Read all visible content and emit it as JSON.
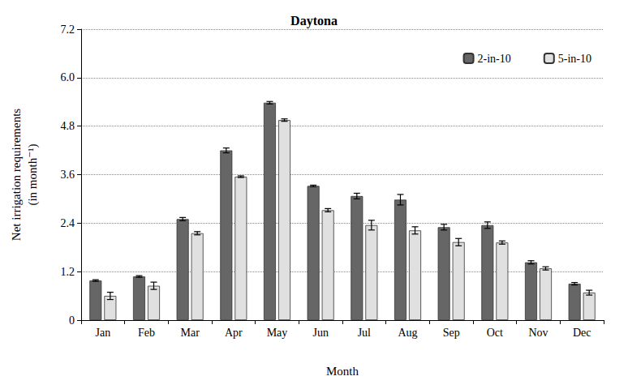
{
  "chart_data": {
    "type": "bar",
    "title": "Daytona",
    "x_label": "Month",
    "y_label": "Net irrigation requirements\n(in month⁻¹)",
    "categories": [
      "Jan",
      "Feb",
      "Mar",
      "Apr",
      "May",
      "Jun",
      "Jul",
      "Aug",
      "Sep",
      "Oct",
      "Nov",
      "Dec"
    ],
    "series": [
      {
        "name": "2-in-10",
        "color": "#666666",
        "values": [
          0.98,
          1.08,
          2.5,
          4.2,
          5.38,
          3.32,
          3.07,
          2.98,
          2.3,
          2.35,
          1.43,
          0.9
        ],
        "errors": [
          0.02,
          0.02,
          0.04,
          0.06,
          0.03,
          0.02,
          0.07,
          0.13,
          0.07,
          0.08,
          0.04,
          0.03
        ]
      },
      {
        "name": "5-in-10",
        "color": "#e0e0e0",
        "values": [
          0.6,
          0.85,
          2.15,
          3.55,
          4.95,
          2.72,
          2.35,
          2.22,
          1.93,
          1.92,
          1.28,
          0.68
        ],
        "errors": [
          0.09,
          0.09,
          0.04,
          0.02,
          0.03,
          0.04,
          0.12,
          0.09,
          0.09,
          0.04,
          0.04,
          0.06
        ]
      }
    ],
    "ylim": [
      0,
      7.2
    ],
    "yticks": [
      0,
      1.2,
      2.4,
      3.6,
      4.8,
      {
        "value": 6,
        "label": "6.0"
      },
      7.2
    ],
    "grid": true,
    "legend": "top-right"
  }
}
